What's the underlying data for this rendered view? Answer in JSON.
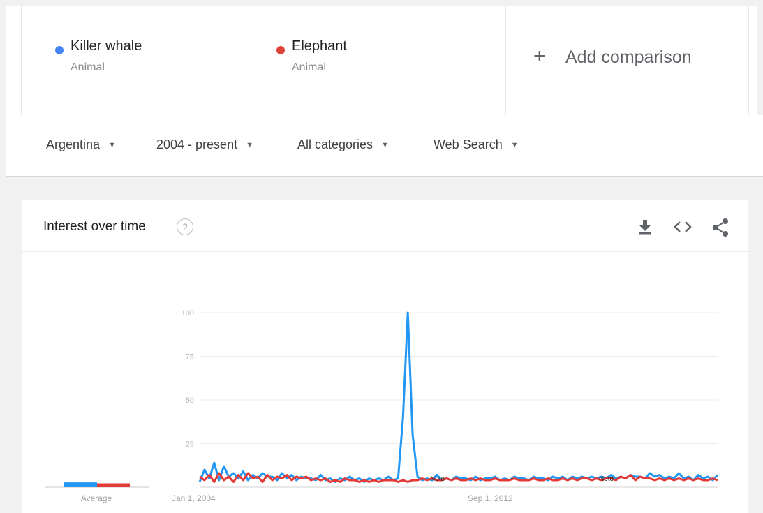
{
  "comparison": {
    "terms": [
      {
        "name": "Killer whale",
        "type": "Animal",
        "color": "#4285f4"
      },
      {
        "name": "Elephant",
        "type": "Animal",
        "color": "#db4437"
      }
    ],
    "add_label": "Add comparison"
  },
  "filters": {
    "region": "Argentina",
    "time": "2004 - present",
    "category": "All categories",
    "search_type": "Web Search"
  },
  "card": {
    "title": "Interest over time",
    "help_icon": "question-mark-icon",
    "actions": [
      "download-icon",
      "embed-code-icon",
      "share-icon"
    ]
  },
  "chart_data": {
    "type": "line",
    "yticks": [
      25,
      50,
      75,
      100
    ],
    "ylim": [
      0,
      100
    ],
    "x_tick_labels": [
      "Jan 1, 2004",
      "Sep 1, 2012"
    ],
    "annotations": [
      "Note",
      "Note"
    ],
    "average_label": "Average",
    "averages": {
      "Killer whale": 5,
      "Elephant": 4
    },
    "colors": {
      "Killer whale": "#2196f3",
      "Elephant": "#e53935"
    },
    "series": [
      {
        "name": "Killer whale",
        "values": [
          3,
          10,
          5,
          14,
          4,
          12,
          6,
          8,
          5,
          9,
          4,
          7,
          5,
          8,
          6,
          6,
          4,
          8,
          5,
          7,
          4,
          6,
          5,
          5,
          4,
          7,
          4,
          5,
          3,
          5,
          4,
          6,
          4,
          5,
          3,
          5,
          4,
          5,
          4,
          6,
          4,
          5,
          40,
          100,
          30,
          6,
          4,
          5,
          4,
          7,
          4,
          5,
          4,
          6,
          5,
          5,
          4,
          6,
          4,
          5,
          5,
          6,
          4,
          5,
          4,
          6,
          5,
          5,
          4,
          6,
          5,
          5,
          4,
          6,
          5,
          6,
          4,
          6,
          5,
          6,
          5,
          6,
          5,
          6,
          5,
          7,
          5,
          6,
          5,
          7,
          6,
          6,
          5,
          8,
          6,
          7,
          5,
          6,
          5,
          8,
          5,
          6,
          4,
          7,
          5,
          6,
          4,
          7
        ]
      },
      {
        "name": "Elephant",
        "values": [
          6,
          4,
          7,
          3,
          8,
          4,
          6,
          3,
          7,
          4,
          8,
          5,
          6,
          3,
          7,
          4,
          6,
          5,
          7,
          4,
          6,
          5,
          6,
          4,
          5,
          4,
          5,
          3,
          4,
          3,
          5,
          4,
          4,
          3,
          4,
          3,
          4,
          3,
          4,
          4,
          4,
          3,
          4,
          3,
          4,
          4,
          5,
          4,
          5,
          4,
          4,
          5,
          4,
          5,
          4,
          4,
          5,
          4,
          5,
          4,
          4,
          5,
          4,
          4,
          4,
          5,
          4,
          4,
          4,
          5,
          4,
          4,
          5,
          4,
          4,
          5,
          4,
          5,
          4,
          5,
          5,
          4,
          5,
          4,
          5,
          5,
          4,
          6,
          5,
          7,
          4,
          6,
          5,
          5,
          4,
          5,
          4,
          5,
          4,
          5,
          4,
          5,
          4,
          5,
          4,
          4,
          5,
          4
        ]
      }
    ]
  }
}
